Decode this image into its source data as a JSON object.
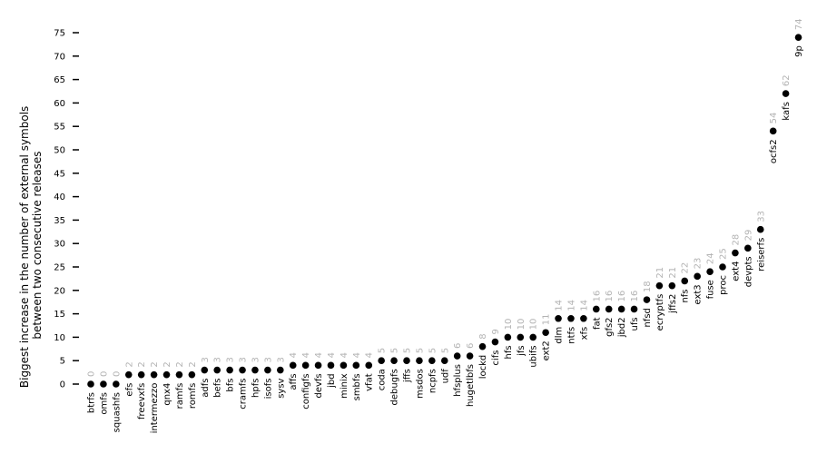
{
  "chart_data": {
    "type": "scatter",
    "ylabel_lines": [
      "Biggest increase in the number of external symbols",
      "between two consecutive releases"
    ],
    "yticks": [
      0,
      5,
      10,
      15,
      20,
      25,
      30,
      35,
      40,
      45,
      50,
      55,
      60,
      65,
      70,
      75
    ],
    "ylim": [
      0,
      75
    ],
    "categories": [
      "btrfs",
      "omfs",
      "squashfs",
      "efs",
      "freevxfs",
      "intermezzo",
      "qnx4",
      "ramfs",
      "romfs",
      "adfs",
      "befs",
      "bfs",
      "cramfs",
      "hpfs",
      "isofs",
      "sysv",
      "affs",
      "configfs",
      "devfs",
      "jbd",
      "minix",
      "smbfs",
      "vfat",
      "coda",
      "debugfs",
      "jffs",
      "msdos",
      "ncpfs",
      "udf",
      "hfsplus",
      "hugetlbfs",
      "lockd",
      "cifs",
      "hfs",
      "jfs",
      "ubifs",
      "ext2",
      "dlm",
      "ntfs",
      "xfs",
      "fat",
      "gfs2",
      "jbd2",
      "ufs",
      "nfsd",
      "ecryptfs",
      "jffs2",
      "nfs",
      "ext3",
      "fuse",
      "proc",
      "ext4",
      "devpts",
      "reiserfs",
      "ocfs2",
      "kafs",
      "9p"
    ],
    "values": [
      0,
      0,
      0,
      2,
      2,
      2,
      2,
      2,
      2,
      3,
      3,
      3,
      3,
      3,
      3,
      3,
      4,
      4,
      4,
      4,
      4,
      4,
      4,
      5,
      5,
      5,
      5,
      5,
      5,
      6,
      6,
      8,
      9,
      10,
      10,
      10,
      11,
      14,
      14,
      14,
      16,
      16,
      16,
      16,
      18,
      21,
      21,
      22,
      23,
      24,
      25,
      28,
      29,
      33,
      54,
      62,
      74
    ],
    "colors": {
      "point": "#000000",
      "value_label": "#b3b3b3",
      "axis": "#000000"
    }
  }
}
